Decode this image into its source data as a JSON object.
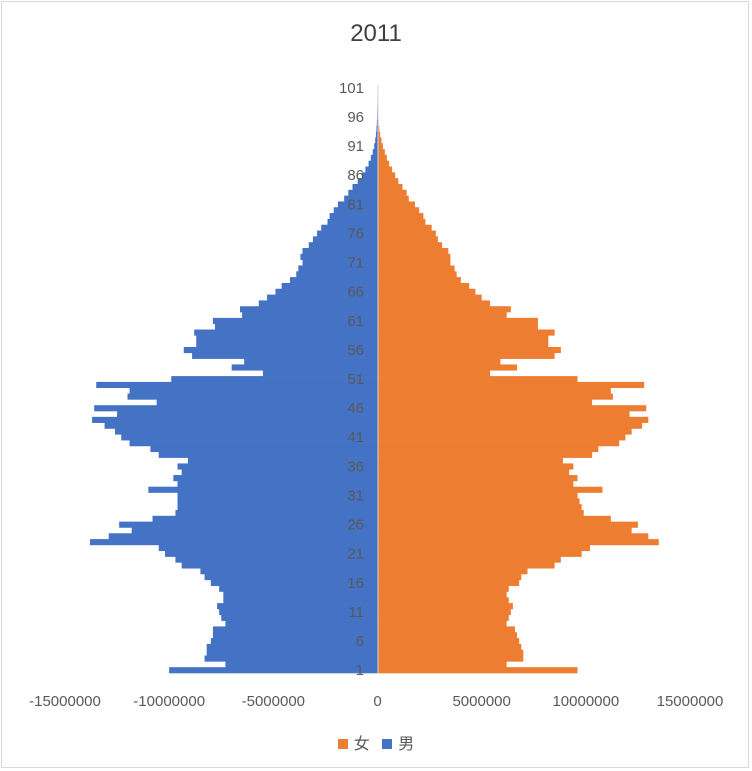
{
  "chart_data": {
    "type": "bar",
    "orientation": "horizontal-pyramid",
    "title": "2011",
    "xlim": [
      -15000000,
      15000000
    ],
    "ages": [
      1,
      101
    ],
    "y_tick_labels": [
      "1",
      "6",
      "11",
      "16",
      "21",
      "26",
      "31",
      "36",
      "41",
      "46",
      "51",
      "56",
      "61",
      "66",
      "71",
      "76",
      "81",
      "86",
      "91",
      "96",
      "101"
    ],
    "x_tick_labels": [
      "-15000000",
      "-10000000",
      "-5000000",
      "0",
      "5000000",
      "10000000",
      "15000000"
    ],
    "x_tick_values": [
      -15000000,
      -10000000,
      -5000000,
      0,
      5000000,
      10000000,
      15000000
    ],
    "legend": [
      "女",
      "男"
    ],
    "colors": {
      "女": "#ed7d31",
      "男": "#4472c4"
    },
    "series": [
      {
        "name": "男",
        "values": [
          -10000000,
          -7300000,
          -8300000,
          -8200000,
          -8200000,
          -8000000,
          -7900000,
          -7900000,
          -7300000,
          -7500000,
          -7600000,
          -7700000,
          -7400000,
          -7400000,
          -7600000,
          -8000000,
          -8300000,
          -8500000,
          -9400000,
          -9700000,
          -10200000,
          -10500000,
          -13800000,
          -12900000,
          -11800000,
          -12400000,
          -10800000,
          -9700000,
          -9600000,
          -9600000,
          -9600000,
          -11000000,
          -9600000,
          -9800000,
          -9400000,
          -9600000,
          -9100000,
          -10500000,
          -10900000,
          -11900000,
          -12300000,
          -12600000,
          -13100000,
          -13700000,
          -12500000,
          -13600000,
          -10600000,
          -12000000,
          -11900000,
          -13500000,
          -9900000,
          -5500000,
          -7000000,
          -6400000,
          -8900000,
          -9300000,
          -8700000,
          -8700000,
          -8800000,
          -7800000,
          -7900000,
          -6500000,
          -6600000,
          -5700000,
          -5300000,
          -4900000,
          -4600000,
          -4200000,
          -3900000,
          -3800000,
          -3600000,
          -3700000,
          -3600000,
          -3300000,
          -3100000,
          -2900000,
          -2700000,
          -2400000,
          -2300000,
          -2100000,
          -1900000,
          -1600000,
          -1400000,
          -1200000,
          -950000,
          -750000,
          -580000,
          -430000,
          -320000,
          -230000,
          -160000,
          -110000,
          -75000,
          -50000,
          -32000,
          -20000,
          -12000,
          -7000,
          -4000,
          -2000,
          -1000
        ]
      },
      {
        "name": "女",
        "values": [
          9600000,
          6200000,
          7000000,
          7000000,
          6900000,
          6800000,
          6700000,
          6600000,
          6200000,
          6300000,
          6400000,
          6500000,
          6300000,
          6200000,
          6300000,
          6800000,
          6900000,
          7200000,
          8500000,
          8800000,
          9800000,
          10200000,
          13500000,
          13000000,
          12200000,
          12500000,
          11200000,
          9900000,
          9800000,
          9700000,
          9600000,
          10800000,
          9400000,
          9600000,
          9200000,
          9400000,
          8900000,
          10300000,
          10600000,
          11600000,
          11900000,
          12200000,
          12700000,
          13000000,
          12100000,
          12900000,
          10300000,
          11300000,
          11200000,
          12800000,
          9600000,
          5400000,
          6700000,
          5900000,
          8500000,
          8800000,
          8200000,
          8200000,
          8500000,
          7700000,
          7700000,
          6200000,
          6400000,
          5400000,
          5000000,
          4700000,
          4400000,
          4000000,
          3800000,
          3700000,
          3500000,
          3500000,
          3400000,
          3100000,
          2900000,
          2800000,
          2600000,
          2300000,
          2200000,
          2000000,
          1800000,
          1500000,
          1400000,
          1200000,
          1000000,
          850000,
          700000,
          560000,
          450000,
          350000,
          260000,
          190000,
          130000,
          85000,
          55000,
          35000,
          22000,
          13000,
          7000,
          4000,
          2000
        ]
      }
    ]
  }
}
